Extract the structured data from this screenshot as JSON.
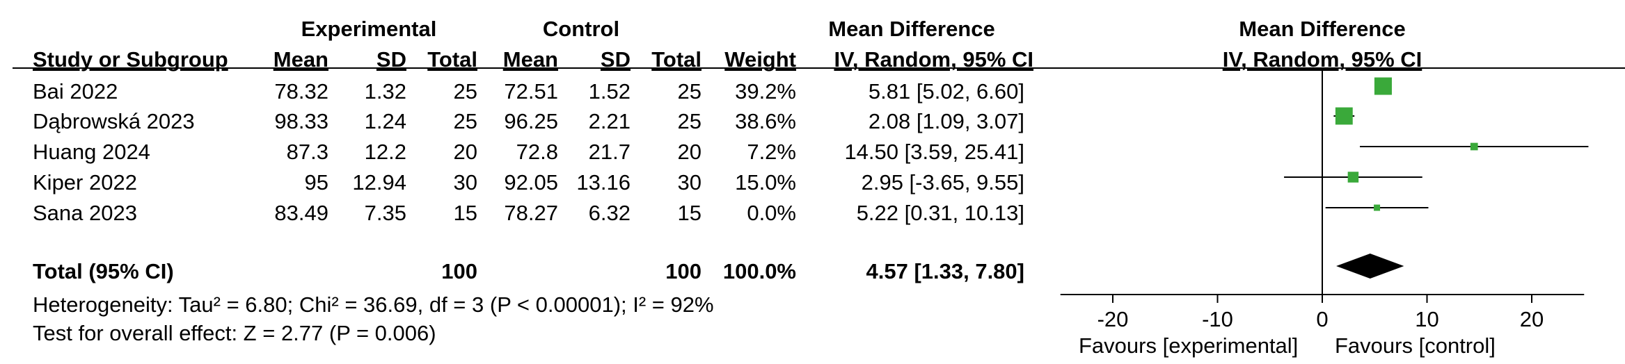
{
  "header": {
    "group_experimental": "Experimental",
    "group_control": "Control",
    "md_title": "Mean Difference",
    "md_method": "IV, Random, 95% CI",
    "plot_title": "Mean Difference",
    "plot_method": "IV, Random, 95% CI",
    "col_study": "Study or Subgroup",
    "col_mean_e": "Mean",
    "col_sd_e": "SD",
    "col_total_e": "Total",
    "col_mean_c": "Mean",
    "col_sd_c": "SD",
    "col_total_c": "Total",
    "col_weight": "Weight"
  },
  "studies": [
    {
      "name": "Bai 2022",
      "mean_e": "78.32",
      "sd_e": "1.32",
      "total_e": "25",
      "mean_c": "72.51",
      "sd_c": "1.52",
      "total_c": "25",
      "weight": "39.2%",
      "ci": "5.81 [5.02, 6.60]"
    },
    {
      "name": "Dąbrowská 2023",
      "mean_e": "98.33",
      "sd_e": "1.24",
      "total_e": "25",
      "mean_c": "96.25",
      "sd_c": "2.21",
      "total_c": "25",
      "weight": "38.6%",
      "ci": "2.08 [1.09, 3.07]"
    },
    {
      "name": "Huang 2024",
      "mean_e": "87.3",
      "sd_e": "12.2",
      "total_e": "20",
      "mean_c": "72.8",
      "sd_c": "21.7",
      "total_c": "20",
      "weight": "7.2%",
      "ci": "14.50 [3.59, 25.41]"
    },
    {
      "name": "Kiper 2022",
      "mean_e": "95",
      "sd_e": "12.94",
      "total_e": "30",
      "mean_c": "92.05",
      "sd_c": "13.16",
      "total_c": "30",
      "weight": "15.0%",
      "ci": "2.95 [-3.65, 9.55]"
    },
    {
      "name": "Sana 2023",
      "mean_e": "83.49",
      "sd_e": "7.35",
      "total_e": "15",
      "mean_c": "78.27",
      "sd_c": "6.32",
      "total_c": "15",
      "weight": "0.0%",
      "ci": "5.22 [0.31, 10.13]"
    }
  ],
  "total": {
    "label": "Total (95% CI)",
    "total_e": "100",
    "total_c": "100",
    "weight": "100.0%",
    "ci": "4.57 [1.33, 7.80]"
  },
  "footer": {
    "heterogeneity": "Heterogeneity: Tau² = 6.80; Chi² = 36.69, df = 3 (P < 0.00001); I² = 92%",
    "overall": "Test for overall effect: Z = 2.77 (P = 0.006)"
  },
  "chart_data": {
    "type": "forest",
    "xlim": [
      -25,
      25
    ],
    "xticks": [
      -20,
      -10,
      0,
      10,
      20
    ],
    "xtick_labels": [
      "-20",
      "-10",
      "0",
      "10",
      "20"
    ],
    "favours_left": "Favours [experimental]",
    "favours_right": "Favours [control]",
    "marker_color": "#3aa93a",
    "studies": [
      {
        "name": "Bai 2022",
        "md": 5.81,
        "lo": 5.02,
        "hi": 6.6,
        "weight": 39.2
      },
      {
        "name": "Dąbrowská 2023",
        "md": 2.08,
        "lo": 1.09,
        "hi": 3.07,
        "weight": 38.6
      },
      {
        "name": "Huang 2024",
        "md": 14.5,
        "lo": 3.59,
        "hi": 25.41,
        "weight": 7.2
      },
      {
        "name": "Kiper 2022",
        "md": 2.95,
        "lo": -3.65,
        "hi": 9.55,
        "weight": 15.0
      },
      {
        "name": "Sana 2023",
        "md": 5.22,
        "lo": 0.31,
        "hi": 10.13,
        "weight": 0.0
      }
    ],
    "pooled": {
      "md": 4.57,
      "lo": 1.33,
      "hi": 7.8
    }
  }
}
